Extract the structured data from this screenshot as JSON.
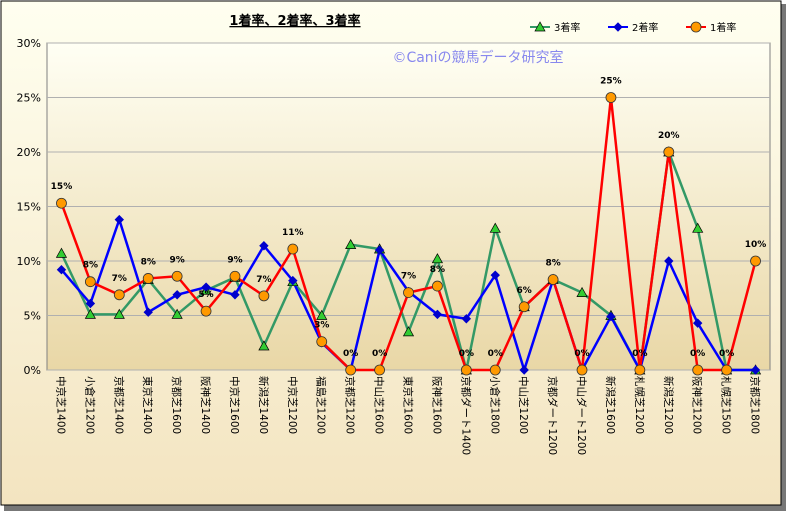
{
  "chart_data": {
    "type": "line",
    "title": "1着率、2着率、3着率",
    "annotation": "©Caniの競馬データ研究室",
    "categories": [
      "中京芝1400",
      "小倉芝1200",
      "京都芝1400",
      "東京芝1400",
      "京都芝1600",
      "阪神芝1400",
      "中京芝1600",
      "新潟芝1400",
      "中京芝1200",
      "福島芝1200",
      "京都芝1200",
      "中山芝1600",
      "東京芝1600",
      "阪神芝1600",
      "京都ダート1400",
      "小倉芝1800",
      "中山芝1200",
      "京都ダート1200",
      "中山ダート1200",
      "新潟芝1600",
      "札幌芝1200",
      "新潟芝1200",
      "阪神芝1200",
      "札幌芝1500",
      "京都芝1800"
    ],
    "series": [
      {
        "name": "3着率",
        "color": "#339966",
        "marker": "triangle",
        "marker_color": "#33cc33",
        "values": [
          10.7,
          5.1,
          5.1,
          8.3,
          5.1,
          7.3,
          8.5,
          2.2,
          8.1,
          5.0,
          11.5,
          11.1,
          3.5,
          10.2,
          0,
          13.0,
          5.8,
          8.3,
          7.1,
          5.0,
          0,
          20.0,
          13.0,
          0,
          0
        ]
      },
      {
        "name": "2着率",
        "color": "#0000ff",
        "marker": "diamond",
        "marker_color": "#0000cc",
        "values": [
          9.2,
          6.1,
          13.8,
          5.3,
          6.9,
          7.6,
          6.9,
          11.4,
          8.2,
          2.5,
          0,
          11.0,
          7.2,
          5.1,
          4.7,
          8.7,
          0,
          8.3,
          0,
          4.9,
          0,
          10.0,
          4.3,
          0,
          0
        ]
      },
      {
        "name": "1着率",
        "color": "#ff0000",
        "marker": "circle",
        "marker_color": "#ff9900",
        "values": [
          15.3,
          8.1,
          6.9,
          8.4,
          8.6,
          5.4,
          8.6,
          6.8,
          11.1,
          2.6,
          0,
          0,
          7.1,
          7.7,
          0,
          0,
          5.8,
          8.3,
          0,
          25.0,
          0,
          20.0,
          0,
          0,
          10.0
        ],
        "value_labels": [
          "15%",
          "8%",
          "7%",
          "8%",
          "9%",
          "5%",
          "9%",
          "7%",
          "11%",
          "3%",
          "0%",
          "0%",
          "7%",
          "8%",
          "0%",
          "0%",
          "6%",
          "8%",
          "0%",
          "25%",
          "0%",
          "20%",
          "0%",
          "0%",
          "10%"
        ]
      }
    ],
    "ylim": [
      0,
      30
    ],
    "yticks": [
      {
        "value": 0,
        "label": "0%"
      },
      {
        "value": 5,
        "label": "5%"
      },
      {
        "value": 10,
        "label": "10%"
      },
      {
        "value": 15,
        "label": "15%"
      },
      {
        "value": 20,
        "label": "20%"
      },
      {
        "value": 25,
        "label": "25%"
      },
      {
        "value": 30,
        "label": "30%"
      }
    ],
    "grid": true,
    "legend": "top-right"
  }
}
